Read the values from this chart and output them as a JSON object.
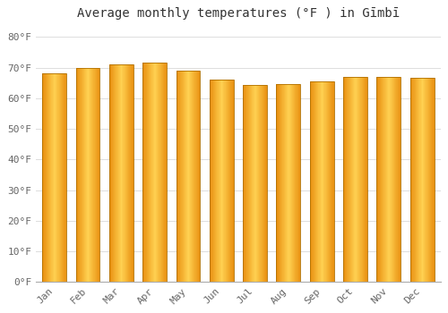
{
  "title": "Average monthly temperatures (°F ) in Gīmbī",
  "months": [
    "Jan",
    "Feb",
    "Mar",
    "Apr",
    "May",
    "Jun",
    "Jul",
    "Aug",
    "Sep",
    "Oct",
    "Nov",
    "Dec"
  ],
  "values": [
    68.0,
    70.0,
    71.2,
    71.6,
    69.0,
    66.0,
    64.2,
    64.6,
    65.5,
    67.0,
    67.0,
    66.8
  ],
  "bar_color_center": "#FFD050",
  "bar_color_edge": "#E89010",
  "bar_border_color": "#B07000",
  "background_color": "#FFFFFF",
  "grid_color": "#DDDDDD",
  "yticks": [
    0,
    10,
    20,
    30,
    40,
    50,
    60,
    70,
    80
  ],
  "ytick_labels": [
    "0°F",
    "10°F",
    "20°F",
    "30°F",
    "40°F",
    "50°F",
    "60°F",
    "70°F",
    "80°F"
  ],
  "ylim": [
    0,
    84
  ],
  "title_fontsize": 10,
  "tick_fontsize": 8,
  "title_color": "#333333",
  "tick_color": "#666666",
  "n_gradient_steps": 50
}
